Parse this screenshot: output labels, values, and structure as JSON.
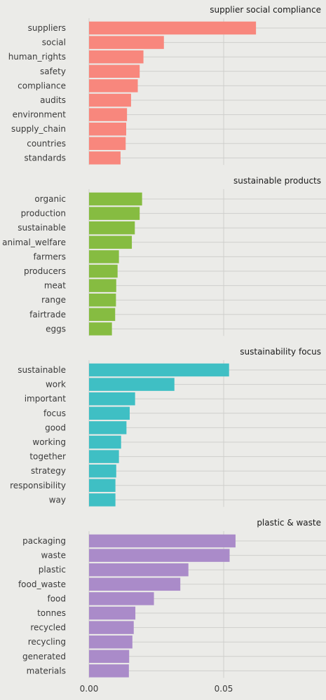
{
  "chart_data": {
    "type": "bar",
    "orientation": "horizontal",
    "facets": "stacked vertically, shared x axis",
    "grid": true,
    "x_axis": {
      "ticks": [
        0,
        0.05
      ],
      "tick_labels": [
        "0.00",
        "0.05"
      ],
      "xlim": [
        0,
        0.088
      ]
    },
    "panels": [
      {
        "title": "supplier social compliance",
        "color": "#F8877D",
        "categories": [
          "suppliers",
          "social",
          "human_rights",
          "safety",
          "compliance",
          "audits",
          "environment",
          "supply_chain",
          "countries",
          "standards"
        ],
        "values": [
          0.062,
          0.0278,
          0.0202,
          0.0188,
          0.0181,
          0.0156,
          0.0141,
          0.0138,
          0.0136,
          0.0117
        ]
      },
      {
        "title": "sustainable products",
        "color": "#86BC41",
        "categories": [
          "organic",
          "production",
          "sustainable",
          "animal_welfare",
          "farmers",
          "producers",
          "meat",
          "range",
          "fairtrade",
          "eggs"
        ],
        "values": [
          0.0197,
          0.0188,
          0.017,
          0.0159,
          0.0111,
          0.0106,
          0.0101,
          0.01,
          0.0097,
          0.0085
        ]
      },
      {
        "title": "sustainability focus",
        "color": "#3FBFC4",
        "categories": [
          "sustainable",
          "work",
          "important",
          "focus",
          "good",
          "working",
          "together",
          "strategy",
          "responsibility",
          "way"
        ],
        "values": [
          0.052,
          0.0317,
          0.0171,
          0.0151,
          0.0139,
          0.0119,
          0.0111,
          0.0101,
          0.0098,
          0.0098
        ]
      },
      {
        "title": "plastic & waste",
        "color": "#AA8BC9",
        "categories": [
          "packaging",
          "waste",
          "plastic",
          "food_waste",
          "food",
          "tonnes",
          "recycled",
          "recycling",
          "generated",
          "materials"
        ],
        "values": [
          0.0544,
          0.0522,
          0.0369,
          0.0339,
          0.0241,
          0.0172,
          0.0166,
          0.0161,
          0.0149,
          0.0148
        ]
      }
    ]
  }
}
